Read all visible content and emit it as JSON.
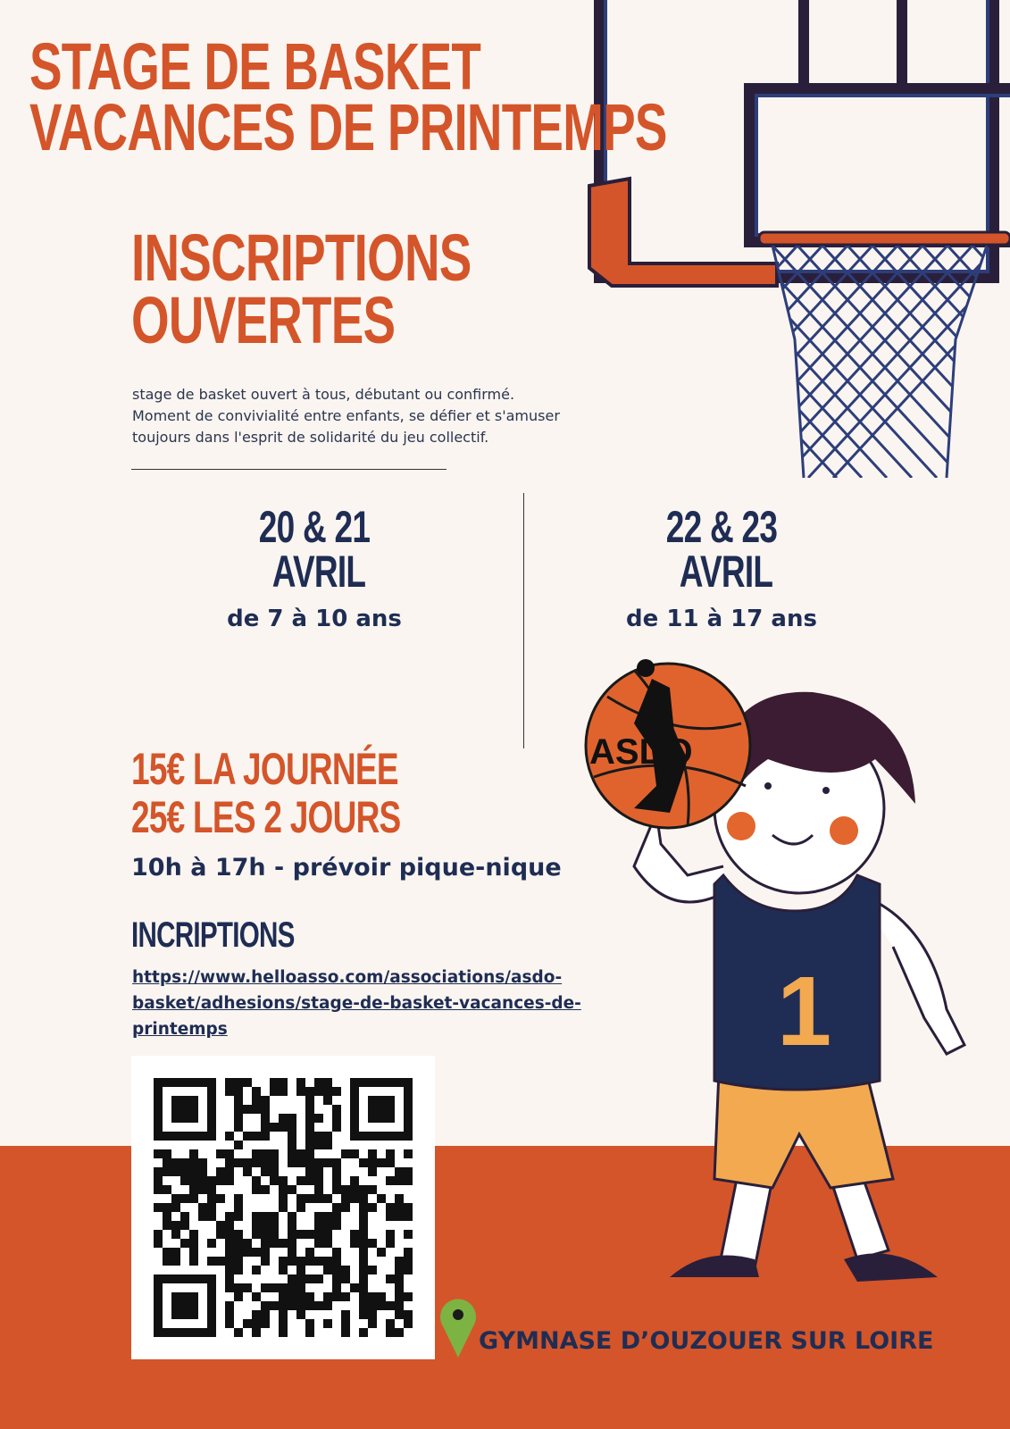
{
  "title": {
    "line1": "STAGE DE BASKET",
    "line2": "VACANCES DE PRINTEMPS"
  },
  "subtitle": {
    "line1": "INSCRIPTIONS",
    "line2": "OUVERTES"
  },
  "description": [
    "stage de basket ouvert à tous, débutant ou confirmé.",
    "Moment de convivialité entre enfants, se défier et s'amuser",
    "toujours dans l'esprit de solidarité du jeu collectif."
  ],
  "sessions": [
    {
      "dates": "20 & 21",
      "month": "AVRIL",
      "ages": "de 7 à 10 ans"
    },
    {
      "dates": "22 & 23",
      "month": "AVRIL",
      "ages": "de 11 à 17 ans"
    }
  ],
  "prices": {
    "day": "15€ LA JOURNÉE",
    "two_days": "25€ LES 2 JOURS"
  },
  "schedule": "10h à 17h - prévoir pique-nique",
  "registration": {
    "heading": "INCRIPTIONS",
    "link_lines": [
      "https://www.helloasso.com/associations/asdo-",
      "basket/adhesions/stage-de-basket-vacances-de-",
      "printemps"
    ]
  },
  "logo_text": "ASDO",
  "jersey_number": "1",
  "location": {
    "icon": "map-pin-icon",
    "name": "GYMNASE D’OUZOUER SUR LOIRE"
  },
  "colors": {
    "background": "#faf5f0",
    "orange": "#d4552a",
    "navy": "#1f2d54",
    "pin": "#7cb342"
  }
}
